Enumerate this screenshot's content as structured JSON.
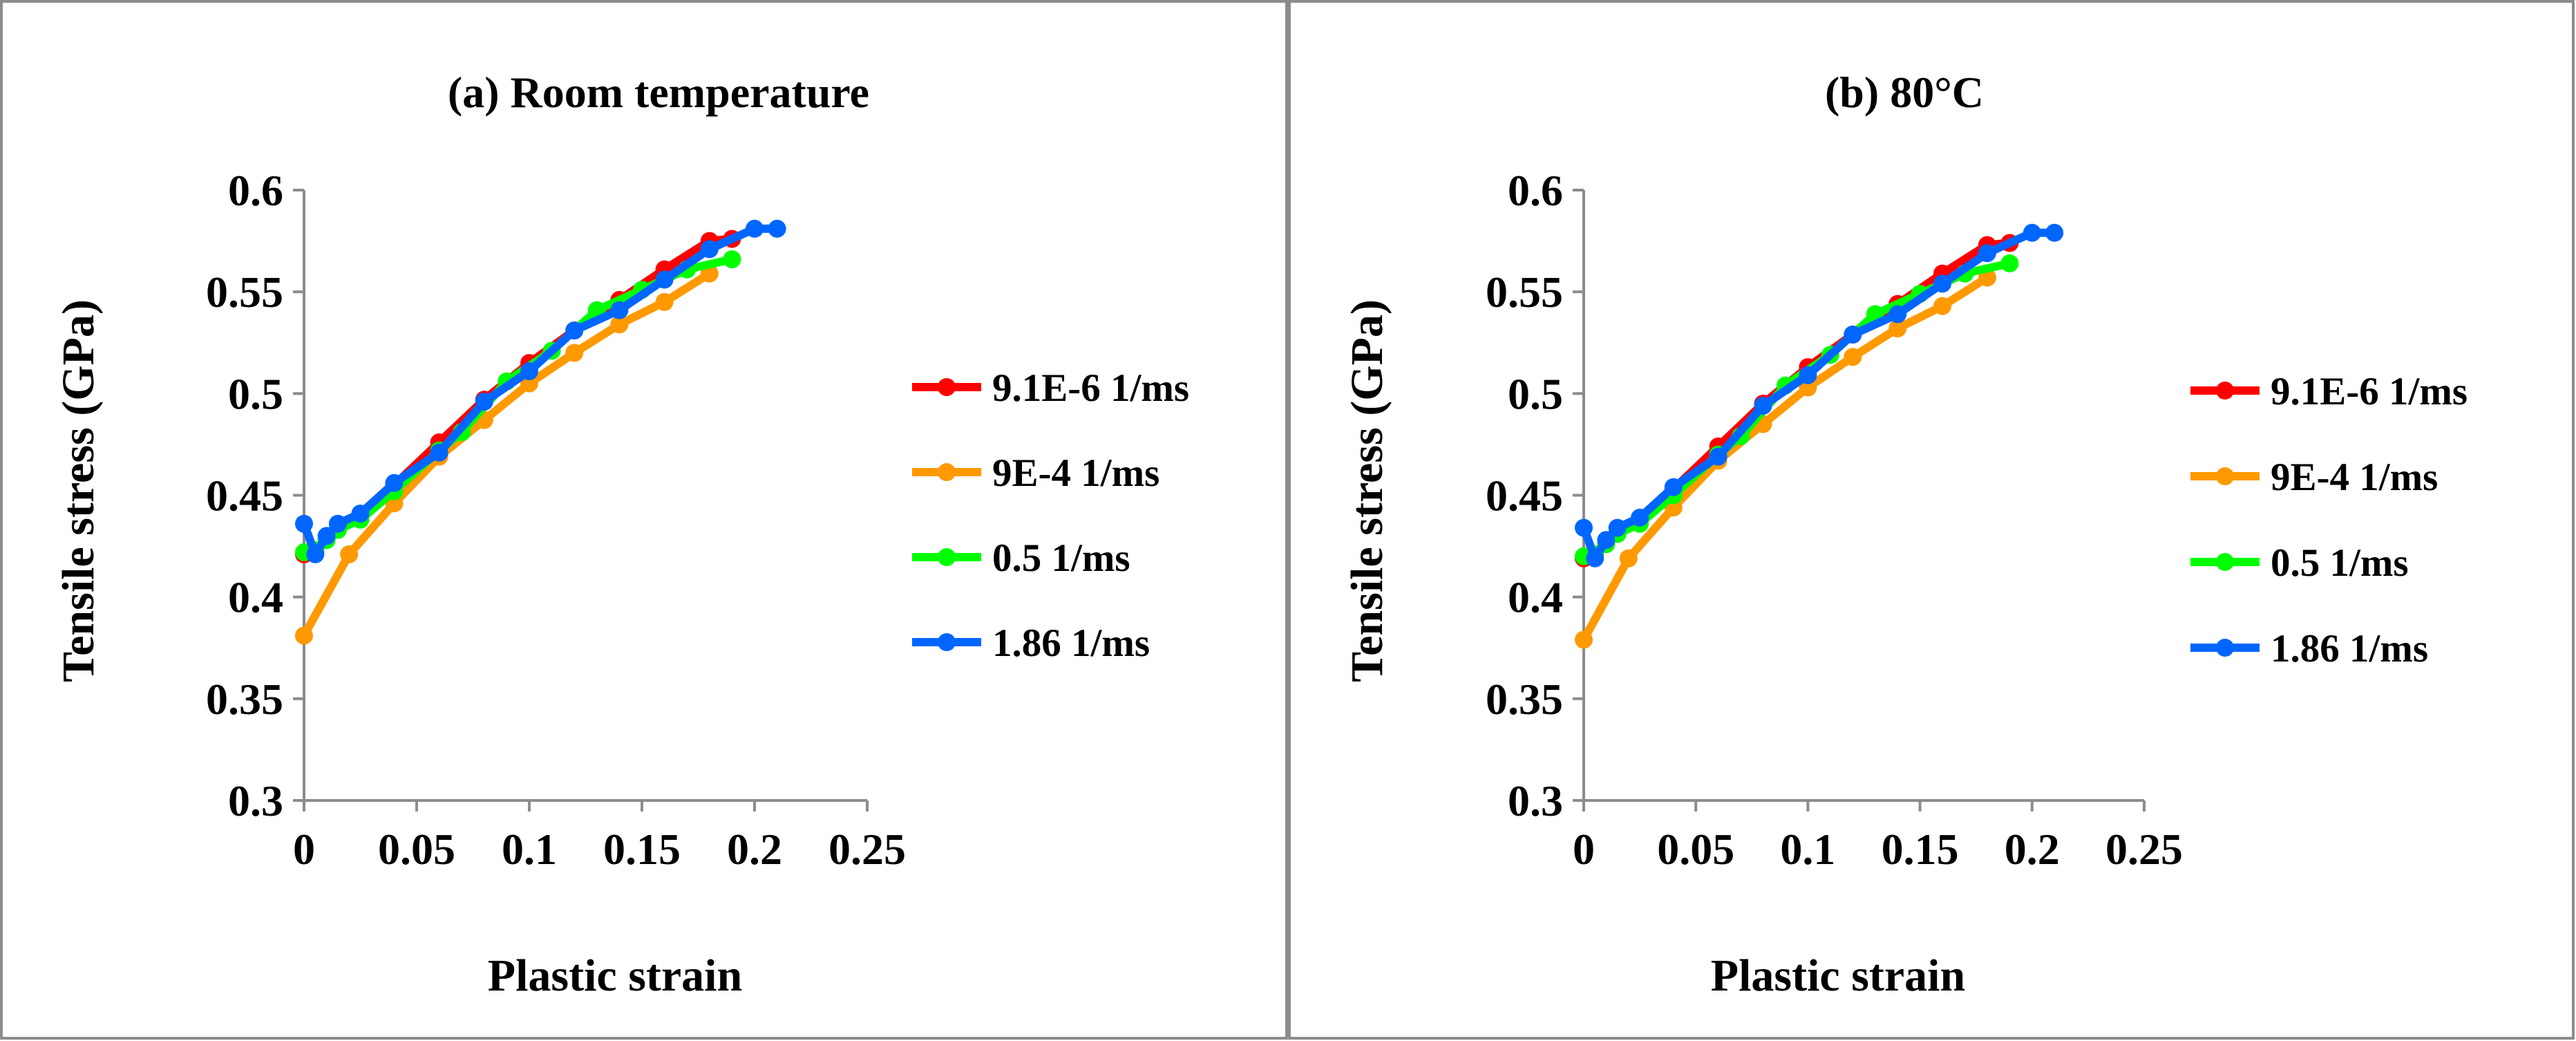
{
  "chart_data": [
    {
      "type": "line",
      "title": "(a) Room temperature",
      "xlabel": "Plastic strain",
      "ylabel": "Tensile stress (GPa)",
      "xlim": [
        0,
        0.25
      ],
      "ylim": [
        0.3,
        0.6
      ],
      "xticks": [
        "0",
        "0.05",
        "0.1",
        "0.15",
        "0.2",
        "0.25"
      ],
      "yticks": [
        "0.3",
        "0.35",
        "0.4",
        "0.45",
        "0.5",
        "0.55",
        "0.6"
      ],
      "grid": false,
      "legend": "right",
      "series": [
        {
          "name": "9.1E-6 1/ms",
          "color": "#ff0000",
          "x": [
            0,
            0.005,
            0.01,
            0.015,
            0.025,
            0.04,
            0.06,
            0.08,
            0.1,
            0.12,
            0.14,
            0.16,
            0.18,
            0.19
          ],
          "y": [
            0.421,
            0.422,
            0.428,
            0.433,
            0.44,
            0.455,
            0.476,
            0.497,
            0.515,
            0.531,
            0.546,
            0.561,
            0.575,
            0.576
          ]
        },
        {
          "name": "9E-4 1/ms",
          "color": "#ff9900",
          "x": [
            0,
            0.02,
            0.04,
            0.06,
            0.08,
            0.1,
            0.12,
            0.14,
            0.16,
            0.18
          ],
          "y": [
            0.381,
            0.421,
            0.446,
            0.469,
            0.487,
            0.505,
            0.52,
            0.534,
            0.545,
            0.559
          ]
        },
        {
          "name": "0.5 1/ms",
          "color": "#00ff00",
          "x": [
            0,
            0.005,
            0.01,
            0.015,
            0.025,
            0.04,
            0.06,
            0.07,
            0.09,
            0.11,
            0.13,
            0.15,
            0.17,
            0.19
          ],
          "y": [
            0.422,
            0.423,
            0.428,
            0.433,
            0.438,
            0.452,
            0.472,
            0.481,
            0.506,
            0.521,
            0.541,
            0.551,
            0.561,
            0.566
          ]
        },
        {
          "name": "1.86 1/ms",
          "color": "#0066ff",
          "x": [
            0,
            0.005,
            0.01,
            0.015,
            0.025,
            0.04,
            0.06,
            0.08,
            0.1,
            0.12,
            0.14,
            0.16,
            0.18,
            0.2,
            0.21
          ],
          "y": [
            0.436,
            0.421,
            0.43,
            0.436,
            0.441,
            0.456,
            0.471,
            0.496,
            0.511,
            0.531,
            0.541,
            0.556,
            0.571,
            0.581,
            0.581
          ]
        }
      ]
    },
    {
      "type": "line",
      "title": "(b) 80°C",
      "xlabel": "Plastic strain",
      "ylabel": "Tensile stress (GPa)",
      "xlim": [
        0,
        0.25
      ],
      "ylim": [
        0.3,
        0.6
      ],
      "xticks": [
        "0",
        "0.05",
        "0.1",
        "0.15",
        "0.2",
        "0.25"
      ],
      "yticks": [
        "0.3",
        "0.35",
        "0.4",
        "0.45",
        "0.5",
        "0.55",
        "0.6"
      ],
      "grid": false,
      "legend": "right",
      "series": [
        {
          "name": "9.1E-6 1/ms",
          "color": "#ff0000",
          "x": [
            0,
            0.005,
            0.01,
            0.015,
            0.025,
            0.04,
            0.06,
            0.08,
            0.1,
            0.12,
            0.14,
            0.16,
            0.18,
            0.19
          ],
          "y": [
            0.419,
            0.42,
            0.426,
            0.431,
            0.438,
            0.453,
            0.474,
            0.495,
            0.513,
            0.529,
            0.544,
            0.559,
            0.573,
            0.574
          ]
        },
        {
          "name": "9E-4 1/ms",
          "color": "#ff9900",
          "x": [
            0,
            0.02,
            0.04,
            0.06,
            0.08,
            0.1,
            0.12,
            0.14,
            0.16,
            0.18
          ],
          "y": [
            0.379,
            0.419,
            0.444,
            0.467,
            0.485,
            0.503,
            0.518,
            0.532,
            0.543,
            0.557
          ]
        },
        {
          "name": "0.5 1/ms",
          "color": "#00ff00",
          "x": [
            0,
            0.005,
            0.01,
            0.015,
            0.025,
            0.04,
            0.06,
            0.07,
            0.09,
            0.11,
            0.13,
            0.15,
            0.17,
            0.19
          ],
          "y": [
            0.42,
            0.421,
            0.426,
            0.431,
            0.436,
            0.45,
            0.47,
            0.479,
            0.504,
            0.519,
            0.539,
            0.549,
            0.559,
            0.564
          ]
        },
        {
          "name": "1.86 1/ms",
          "color": "#0066ff",
          "x": [
            0,
            0.005,
            0.01,
            0.015,
            0.025,
            0.04,
            0.06,
            0.08,
            0.1,
            0.12,
            0.14,
            0.16,
            0.18,
            0.2,
            0.21
          ],
          "y": [
            0.434,
            0.419,
            0.428,
            0.434,
            0.439,
            0.454,
            0.469,
            0.494,
            0.509,
            0.529,
            0.539,
            0.554,
            0.569,
            0.579,
            0.579
          ]
        }
      ]
    }
  ]
}
